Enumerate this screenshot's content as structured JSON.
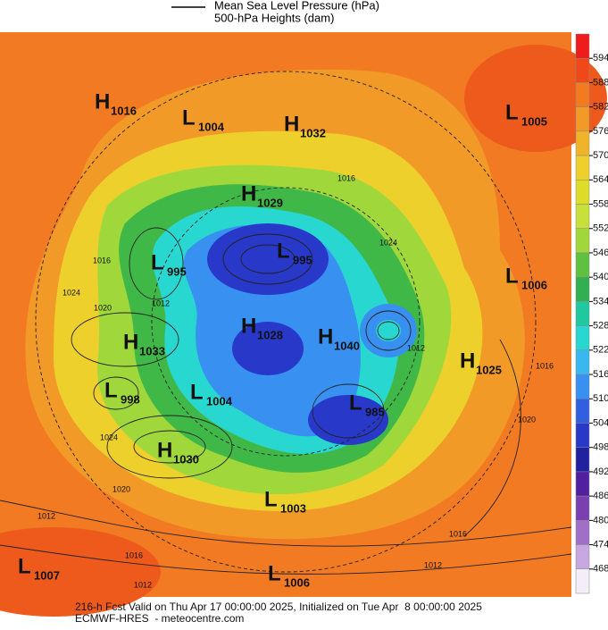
{
  "header": {
    "line_label": "Mean Sea Level Pressure (hPa)",
    "fill_label": "500-hPa Heights (dam)"
  },
  "colorbar": {
    "ticks": [
      594,
      588,
      582,
      576,
      570,
      564,
      558,
      552,
      546,
      540,
      534,
      528,
      522,
      516,
      510,
      504,
      498,
      492,
      486,
      480,
      474,
      468
    ],
    "colors": [
      "#ee1c1c",
      "#f04818",
      "#f47a20",
      "#f29a28",
      "#f0b428",
      "#eed02c",
      "#dedc2a",
      "#c8e03a",
      "#a0d83c",
      "#60c040",
      "#30b050",
      "#20c8a0",
      "#28d8d0",
      "#38b8f0",
      "#3890f0",
      "#3060e0",
      "#2838c8",
      "#2020a0",
      "#5020a0",
      "#7a40b0",
      "#a070c8",
      "#c8a8e0",
      "#f4eef8"
    ]
  },
  "centers": [
    {
      "kind": "H",
      "value": "1016"
    },
    {
      "kind": "L",
      "value": "1004"
    },
    {
      "kind": "H",
      "value": "1032"
    },
    {
      "kind": "L",
      "value": "1005"
    },
    {
      "kind": "H",
      "value": "1029"
    },
    {
      "kind": "L",
      "value": "995"
    },
    {
      "kind": "L",
      "value": "995"
    },
    {
      "kind": "L",
      "value": "1006"
    },
    {
      "kind": "H",
      "value": "1033"
    },
    {
      "kind": "H",
      "value": "1028"
    },
    {
      "kind": "H",
      "value": "1040"
    },
    {
      "kind": "H",
      "value": "1025"
    },
    {
      "kind": "L",
      "value": "998"
    },
    {
      "kind": "L",
      "value": "1004"
    },
    {
      "kind": "L",
      "value": "985"
    },
    {
      "kind": "H",
      "value": "1030"
    },
    {
      "kind": "L",
      "value": "1003"
    },
    {
      "kind": "L",
      "value": "1007"
    },
    {
      "kind": "L",
      "value": "1006"
    }
  ],
  "contour_labels": [
    "1016",
    "1016",
    "1024",
    "1020",
    "1012",
    "1012",
    "1024",
    "1024",
    "1020",
    "1012",
    "1016",
    "1012",
    "1016",
    "1012",
    "1016",
    "1020"
  ],
  "footer": {
    "line1": "216-h Fcst Valid on Thu Apr 17 00:00:00 2025, Initialized on Tue Apr  8 00:00:00 2025",
    "line2": "ECMWF-HRES  - meteocentre.com"
  }
}
